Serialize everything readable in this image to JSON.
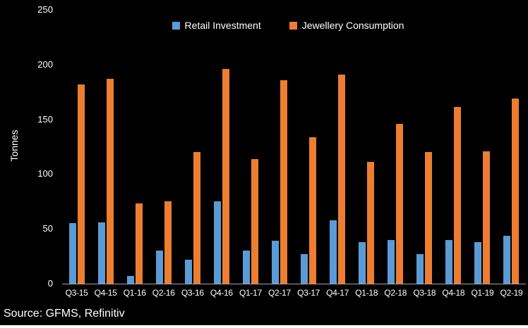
{
  "source_note": "Source: GFMS, Refinitiv",
  "chart_data": {
    "type": "bar",
    "title": "",
    "xlabel": "",
    "ylabel": "Tonnes",
    "ylim": [
      0,
      250
    ],
    "yticks": [
      0,
      50,
      100,
      150,
      200,
      250
    ],
    "grid": false,
    "legend_position": "top-center",
    "background_color": "#000000",
    "text_color": "#ffffff",
    "axis_line_color": "#a6a6a6",
    "categories": [
      "Q3-15",
      "Q4-15",
      "Q1-16",
      "Q2-16",
      "Q3-16",
      "Q4-16",
      "Q1-17",
      "Q2-17",
      "Q3-17",
      "Q4-17",
      "Q1-18",
      "Q2-18",
      "Q3-18",
      "Q4-18",
      "Q1-19",
      "Q2-19"
    ],
    "series": [
      {
        "name": "Retail Investment",
        "color": "#5B9BD5",
        "values": [
          55,
          56,
          7,
          30,
          22,
          75,
          30,
          39,
          27,
          58,
          38,
          40,
          27,
          40,
          38,
          44
        ]
      },
      {
        "name": "Jewellery Consumption",
        "color": "#ED7D31",
        "values": [
          182,
          187,
          73,
          75,
          120,
          196,
          114,
          186,
          134,
          191,
          111,
          146,
          120,
          161,
          121,
          169
        ]
      }
    ]
  }
}
